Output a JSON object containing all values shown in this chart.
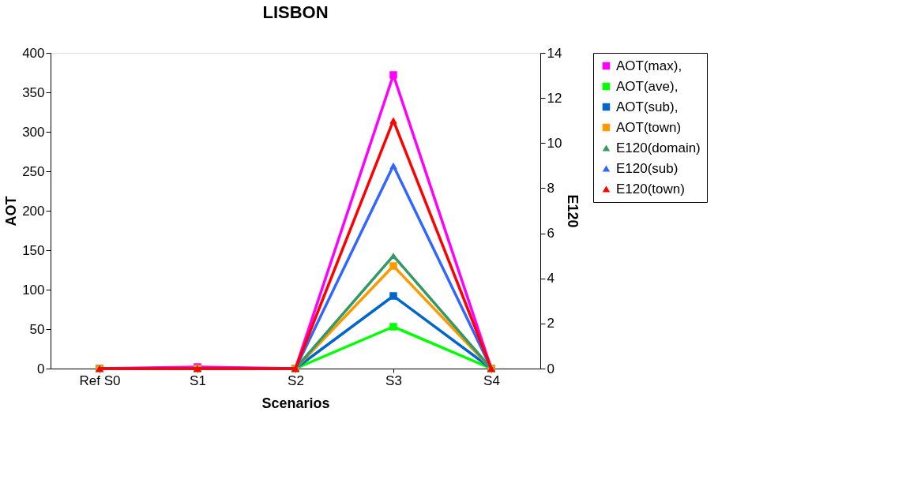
{
  "chart_data": {
    "type": "line",
    "title": "LISBON",
    "xlabel": "Scenarios",
    "ylabel": "AOT",
    "y2label": "E120",
    "categories": [
      "Ref S0",
      "S1",
      "S2",
      "S3",
      "S4"
    ],
    "series": [
      {
        "name": "AOT(max),",
        "color": "#ff00ff",
        "marker": "square",
        "values": [
          0,
          2,
          0,
          372,
          0
        ]
      },
      {
        "name": "AOT(ave),",
        "color": "#00ff00",
        "marker": "square",
        "values": [
          0,
          0,
          0,
          53,
          0
        ]
      },
      {
        "name": "AOT(sub),",
        "color": "#0066cc",
        "marker": "square",
        "values": [
          0,
          0,
          0,
          92,
          0
        ]
      },
      {
        "name": "AOT(town)",
        "color": "#ff9900",
        "marker": "square",
        "values": [
          0,
          0,
          0,
          130,
          0
        ]
      },
      {
        "name": "E120(domain)",
        "color": "#339966",
        "marker": "triangle",
        "axis": "y2",
        "values": [
          0,
          0,
          0,
          5.0,
          0
        ]
      },
      {
        "name": "E120(sub)",
        "color": "#3366ff",
        "marker": "triangle",
        "axis": "y2",
        "values": [
          0,
          0,
          0,
          9.0,
          0
        ]
      },
      {
        "name": "E120(town)",
        "color": "#ff0000",
        "marker": "triangle",
        "axis": "y2",
        "values": [
          0,
          0,
          0,
          11.0,
          0
        ]
      }
    ],
    "ylim": [
      0,
      400
    ],
    "yticks": [
      0,
      50,
      100,
      150,
      200,
      250,
      300,
      350,
      400
    ],
    "y2lim": [
      0,
      14
    ],
    "y2ticks": [
      0,
      2,
      4,
      6,
      8,
      10,
      12,
      14
    ],
    "grid": false,
    "legend": "right",
    "line_style": "solid"
  }
}
